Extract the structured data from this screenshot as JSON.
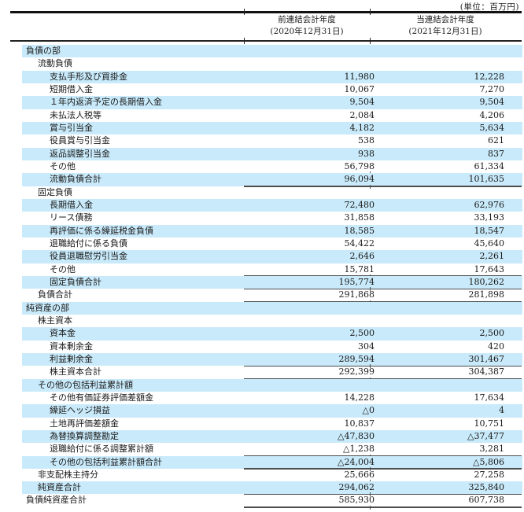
{
  "unit_label": "(単位：百万円)",
  "header": {
    "prev_period": {
      "title": "前連結会計年度",
      "date": "(2020年12月31日)"
    },
    "curr_period": {
      "title": "当連結会計年度",
      "date": "(2021年12月31日)"
    }
  },
  "colors": {
    "row_highlight": "#c9eafa",
    "total_rule": "#4d4d4d",
    "header_border": "#111111"
  },
  "rows": [
    {
      "label": "負債の部",
      "indent": 0,
      "prev": "",
      "curr": "",
      "rule": false
    },
    {
      "label": "流動負債",
      "indent": 1,
      "prev": "",
      "curr": "",
      "rule": false
    },
    {
      "label": "支払手形及び買掛金",
      "indent": 2,
      "prev": "11,980",
      "curr": "12,228",
      "rule": false
    },
    {
      "label": "短期借入金",
      "indent": 2,
      "prev": "10,067",
      "curr": "7,270",
      "rule": false
    },
    {
      "label": "１年内返済予定の長期借入金",
      "indent": 2,
      "prev": "9,504",
      "curr": "9,504",
      "rule": false
    },
    {
      "label": "未払法人税等",
      "indent": 2,
      "prev": "2,084",
      "curr": "4,206",
      "rule": false
    },
    {
      "label": "賞与引当金",
      "indent": 2,
      "prev": "4,182",
      "curr": "5,634",
      "rule": false
    },
    {
      "label": "役員賞与引当金",
      "indent": 2,
      "prev": "538",
      "curr": "621",
      "rule": false
    },
    {
      "label": "返品調整引当金",
      "indent": 2,
      "prev": "938",
      "curr": "837",
      "rule": false
    },
    {
      "label": "その他",
      "indent": 2,
      "prev": "56,798",
      "curr": "61,334",
      "rule": true
    },
    {
      "label": "流動負債合計",
      "indent": 2,
      "prev": "96,094",
      "curr": "101,635",
      "rule": true
    },
    {
      "label": "固定負債",
      "indent": 1,
      "prev": "",
      "curr": "",
      "rule": false
    },
    {
      "label": "長期借入金",
      "indent": 2,
      "prev": "72,480",
      "curr": "62,976",
      "rule": false
    },
    {
      "label": "リース債務",
      "indent": 2,
      "prev": "31,858",
      "curr": "33,193",
      "rule": false
    },
    {
      "label": "再評価に係る繰延税金負債",
      "indent": 2,
      "prev": "18,585",
      "curr": "18,547",
      "rule": false
    },
    {
      "label": "退職給付に係る負債",
      "indent": 2,
      "prev": "54,422",
      "curr": "45,640",
      "rule": false
    },
    {
      "label": "役員退職慰労引当金",
      "indent": 2,
      "prev": "2,646",
      "curr": "2,261",
      "rule": false
    },
    {
      "label": "その他",
      "indent": 2,
      "prev": "15,781",
      "curr": "17,643",
      "rule": true
    },
    {
      "label": "固定負債合計",
      "indent": 2,
      "prev": "195,774",
      "curr": "180,262",
      "rule": true
    },
    {
      "label": "負債合計",
      "indent": 1,
      "prev": "291,868",
      "curr": "281,898",
      "rule": true
    },
    {
      "label": "純資産の部",
      "indent": 0,
      "prev": "",
      "curr": "",
      "rule": false
    },
    {
      "label": "株主資本",
      "indent": 1,
      "prev": "",
      "curr": "",
      "rule": false
    },
    {
      "label": "資本金",
      "indent": 2,
      "prev": "2,500",
      "curr": "2,500",
      "rule": false
    },
    {
      "label": "資本剰余金",
      "indent": 2,
      "prev": "304",
      "curr": "420",
      "rule": false
    },
    {
      "label": "利益剰余金",
      "indent": 2,
      "prev": "289,594",
      "curr": "301,467",
      "rule": true
    },
    {
      "label": "株主資本合計",
      "indent": 2,
      "prev": "292,399",
      "curr": "304,387",
      "rule": true
    },
    {
      "label": "その他の包括利益累計額",
      "indent": 1,
      "prev": "",
      "curr": "",
      "rule": false
    },
    {
      "label": "その他有価証券評価差額金",
      "indent": 2,
      "prev": "14,228",
      "curr": "17,634",
      "rule": false
    },
    {
      "label": "繰延ヘッジ損益",
      "indent": 2,
      "prev": "△0",
      "curr": "4",
      "rule": false
    },
    {
      "label": "土地再評価差額金",
      "indent": 2,
      "prev": "10,837",
      "curr": "10,751",
      "rule": false
    },
    {
      "label": "為替換算調整勘定",
      "indent": 2,
      "prev": "△47,830",
      "curr": "△37,477",
      "rule": false
    },
    {
      "label": "退職給付に係る調整累計額",
      "indent": 2,
      "prev": "△1,238",
      "curr": "3,281",
      "rule": true
    },
    {
      "label": "その他の包括利益累計額合計",
      "indent": 2,
      "prev": "△24,004",
      "curr": "△5,806",
      "rule": true
    },
    {
      "label": "非支配株主持分",
      "indent": 1,
      "prev": "25,666",
      "curr": "27,258",
      "rule": true
    },
    {
      "label": "純資産合計",
      "indent": 1,
      "prev": "294,062",
      "curr": "325,840",
      "rule": true
    },
    {
      "label": "負債純資産合計",
      "indent": 0,
      "prev": "585,930",
      "curr": "607,738",
      "rule": true
    }
  ]
}
